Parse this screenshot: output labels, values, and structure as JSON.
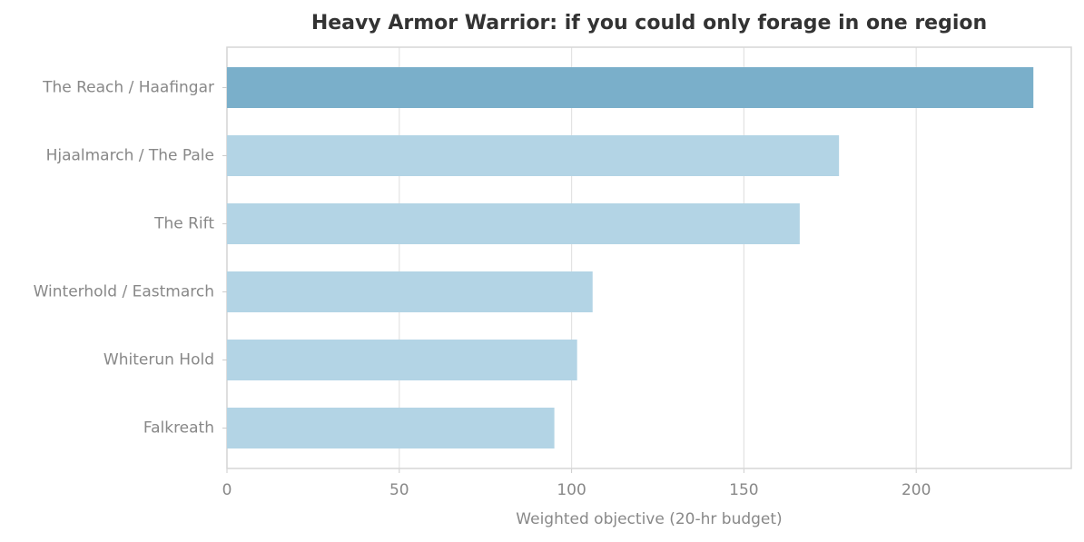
{
  "chart_data": {
    "type": "bar",
    "orientation": "horizontal",
    "title": "Heavy Armor Warrior: if you could only forage in one region",
    "xlabel": "Weighted objective (20-hr budget)",
    "categories": [
      "The Reach / Haafingar",
      "Hjaalmarch / The Pale",
      "The Rift",
      "Winterhold / Eastmarch",
      "Whiterun Hold",
      "Falkreath"
    ],
    "values": [
      234,
      177.6,
      166.2,
      106.1,
      101.6,
      95
    ],
    "colors": [
      "#7aafca",
      "#b3d4e5",
      "#b3d4e5",
      "#b3d4e5",
      "#b3d4e5",
      "#b3d4e5"
    ],
    "xlim": [
      0,
      245
    ],
    "xticks": [
      0,
      50,
      100,
      150,
      200
    ],
    "grid": true
  }
}
